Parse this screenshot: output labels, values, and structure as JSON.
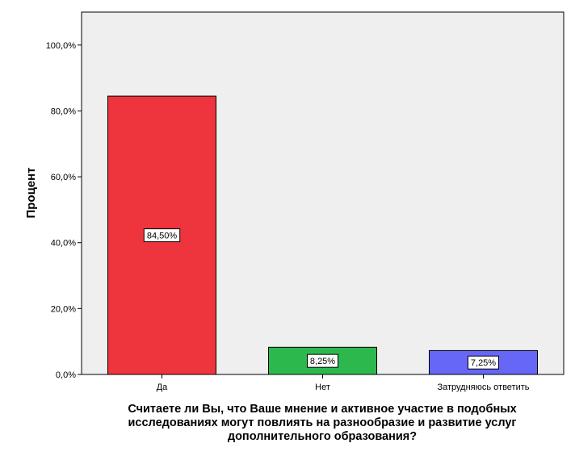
{
  "chart_data": {
    "type": "bar",
    "categories": [
      "Да",
      "Нет",
      "Затрудняюсь ответить"
    ],
    "values": [
      84.5,
      8.25,
      7.25
    ],
    "data_labels": [
      "84,50%",
      "8,25%",
      "7,25%"
    ],
    "colors": [
      "#ee343d",
      "#2db84e",
      "#6666f7"
    ],
    "title_lines": [
      "Считаете ли Вы, что Ваше мнение и активное участие в подобных",
      "исследованиях могут повлиять на разнообразие и развитие услуг",
      "дополнительного образования?"
    ],
    "ylabel": "Процент",
    "xlabel": "",
    "ylim": [
      0,
      110
    ],
    "yticks": [
      0,
      20,
      40,
      60,
      80,
      100
    ],
    "ytick_labels": [
      "0,0%",
      "20,0%",
      "40,0%",
      "60,0%",
      "80,0%",
      "100,0%"
    ],
    "plot_background": "#efefef",
    "grid": false,
    "legend": "none"
  }
}
